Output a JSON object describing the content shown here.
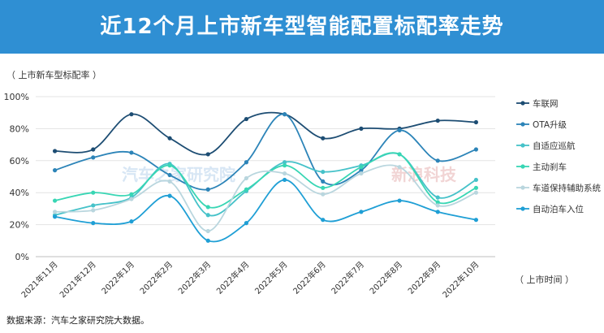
{
  "header": {
    "title": "近12个月上市新车型智能配置标配率走势"
  },
  "labels": {
    "ylabel": "（ 上市新车型标配率 ）",
    "xlabel": "（ 上市时间 ）",
    "source": "数据来源：汽车之家研究院大数据。"
  },
  "watermarks": {
    "left": "汽车之家研究院",
    "right": "新浪科技"
  },
  "colors": {
    "header": "#2f8fd3",
    "车联网": "#1d4d73",
    "OTA升级": "#2c84b8",
    "自适应巡航": "#46c2c9",
    "主动刹车": "#38d6b4",
    "车道保持辅助系统": "#b9d6de",
    "自动泊车入位": "#1f9fd5"
  },
  "chart_data": {
    "type": "line",
    "categories": [
      "2021年11月",
      "2021年12月",
      "2022年1月",
      "2022年2月",
      "2022年3月",
      "2022年4月",
      "2022年5月",
      "2022年6月",
      "2022年7月",
      "2022年8月",
      "2022年9月",
      "2022年10月"
    ],
    "yticks": [
      "0%",
      "20%",
      "40%",
      "60%",
      "80%",
      "100%"
    ],
    "ylim": [
      0,
      100
    ],
    "grid": true,
    "legend_position": "right",
    "series": [
      {
        "name": "车联网",
        "values": [
          66,
          67,
          89,
          74,
          64,
          86,
          89,
          74,
          80,
          80,
          85,
          84
        ]
      },
      {
        "name": "OTA升级",
        "values": [
          54,
          62,
          65,
          51,
          42,
          59,
          89,
          47,
          54,
          79,
          60,
          67
        ]
      },
      {
        "name": "自适应巡航",
        "values": [
          26,
          32,
          37,
          58,
          26,
          41,
          59,
          53,
          57,
          64,
          37,
          48
        ]
      },
      {
        "name": "主动刹车",
        "values": [
          35,
          40,
          39,
          57,
          31,
          42,
          57,
          43,
          56,
          64,
          34,
          43
        ]
      },
      {
        "name": "车道保持辅助系统",
        "values": [
          28,
          29,
          36,
          47,
          16,
          49,
          52,
          39,
          52,
          56,
          32,
          40
        ]
      },
      {
        "name": "自动泊车入位",
        "values": [
          25,
          21,
          22,
          38,
          10,
          21,
          48,
          23,
          28,
          35,
          28,
          23
        ]
      }
    ]
  }
}
